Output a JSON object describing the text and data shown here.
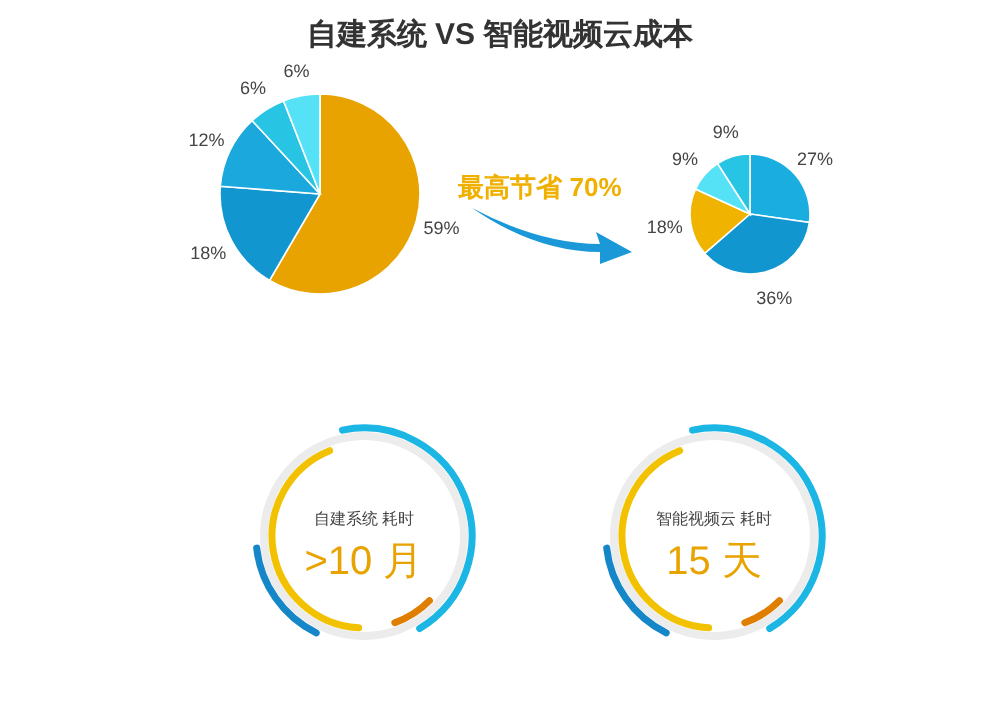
{
  "chart_data": [
    {
      "type": "pie",
      "title": "自建系统 VS 智能视频云成本",
      "categories": [
        null,
        null,
        null,
        null,
        null
      ],
      "values": [
        59,
        18,
        12,
        6,
        6
      ],
      "colors": [
        "#e9a300",
        "#1196d0",
        "#1ba8dc",
        "#27c4e4",
        "#55e2f6"
      ],
      "value_labels": [
        "59%",
        "18%",
        "12%",
        "6%",
        "6%"
      ],
      "annotations": [
        "最高节省 70%"
      ]
    },
    {
      "type": "pie",
      "categories": [
        null,
        null,
        null,
        null,
        null
      ],
      "values": [
        27,
        36,
        18,
        9,
        9
      ],
      "colors": [
        "#1aaee0",
        "#1196d0",
        "#f0b400",
        "#55e2f6",
        "#27c4e4"
      ],
      "value_labels": [
        "27%",
        "36%",
        "18%",
        "9%",
        "9%"
      ]
    },
    {
      "type": "other",
      "annotations": [
        "自建系统 耗时",
        ">10 月"
      ]
    },
    {
      "type": "other",
      "annotations": [
        "智能视频云 耗时",
        "15 天"
      ]
    }
  ]
}
